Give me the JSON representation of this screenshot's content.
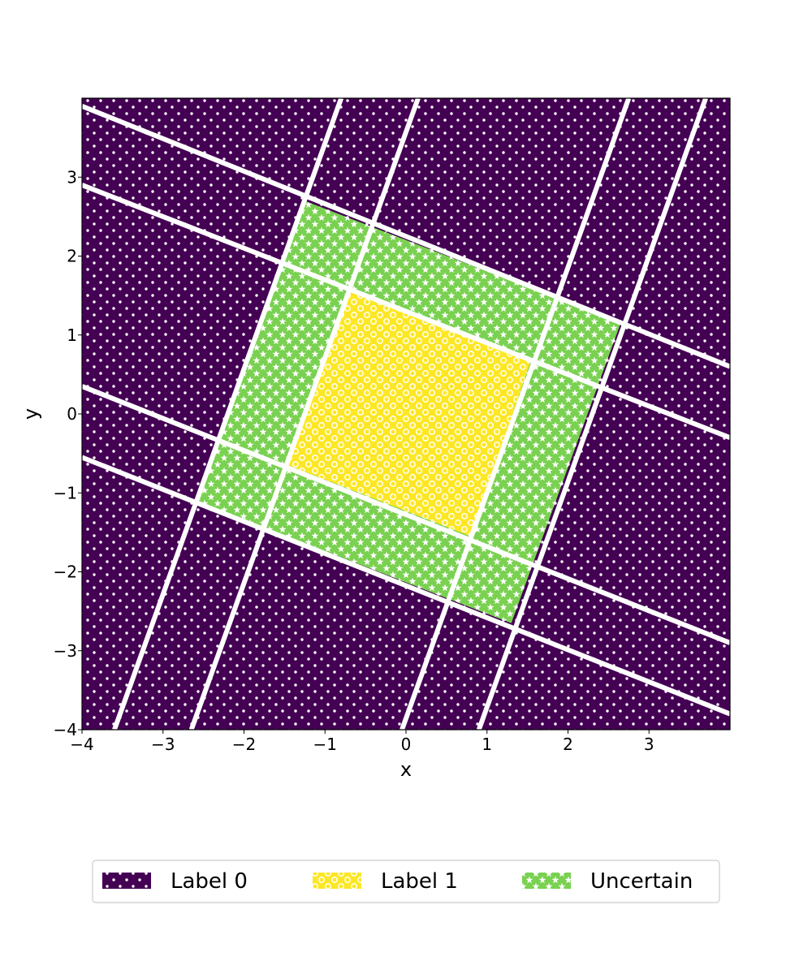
{
  "chart_data": {
    "type": "heatmap",
    "title": "",
    "xlabel": "x",
    "ylabel": "y",
    "xlim": [
      -4,
      4
    ],
    "ylim": [
      -4,
      4
    ],
    "x_ticks": [
      {
        "value": -4,
        "label": "−4"
      },
      {
        "value": -3,
        "label": "−3"
      },
      {
        "value": -2,
        "label": "−2"
      },
      {
        "value": -1,
        "label": "−1"
      },
      {
        "value": 0,
        "label": "0"
      },
      {
        "value": 1,
        "label": "1"
      },
      {
        "value": 2,
        "label": "2"
      },
      {
        "value": 3,
        "label": "3"
      }
    ],
    "y_ticks": [
      {
        "value": -4,
        "label": "−4"
      },
      {
        "value": -3,
        "label": "−3"
      },
      {
        "value": -2,
        "label": "−2"
      },
      {
        "value": -1,
        "label": "−1"
      },
      {
        "value": 0,
        "label": "0"
      },
      {
        "value": 1,
        "label": "1"
      },
      {
        "value": 2,
        "label": "2"
      },
      {
        "value": 3,
        "label": "3"
      }
    ],
    "grid": false,
    "legend_position": "bottom",
    "classes": [
      {
        "name": "Label 0",
        "color": "#440154",
        "hatch": "dots"
      },
      {
        "name": "Label 1",
        "color": "#fde725",
        "hatch": "circles"
      },
      {
        "name": "Uncertain",
        "color": "#7ad151",
        "hatch": "stars"
      }
    ],
    "regions": [
      {
        "class": "Label 1",
        "polygon": [
          [
            -0.7,
            1.6
          ],
          [
            1.55,
            0.7
          ],
          [
            0.8,
            -1.55
          ],
          [
            -1.45,
            -0.65
          ]
        ]
      },
      {
        "class": "Uncertain",
        "polygon": [
          [
            -1.25,
            2.7
          ],
          [
            2.65,
            1.15
          ],
          [
            1.3,
            -2.65
          ],
          [
            -2.6,
            -1.1
          ]
        ]
      }
    ],
    "background_class": "Label 0",
    "boundary_lines": [
      {
        "x1": -4,
        "y1": 3.9,
        "x2": 4,
        "y2": 0.6
      },
      {
        "x1": -4,
        "y1": 2.9,
        "x2": 4,
        "y2": -0.3
      },
      {
        "x1": -4,
        "y1": 0.35,
        "x2": 4,
        "y2": -2.9
      },
      {
        "x1": -4,
        "y1": -0.55,
        "x2": 4,
        "y2": -3.8
      },
      {
        "x1": -3.6,
        "y1": -4,
        "x2": -0.8,
        "y2": 4
      },
      {
        "x1": -2.65,
        "y1": -4,
        "x2": 0.15,
        "y2": 4
      },
      {
        "x1": -0.05,
        "y1": -4,
        "x2": 2.75,
        "y2": 4
      },
      {
        "x1": 0.9,
        "y1": -4,
        "x2": 3.7,
        "y2": 4
      }
    ]
  }
}
